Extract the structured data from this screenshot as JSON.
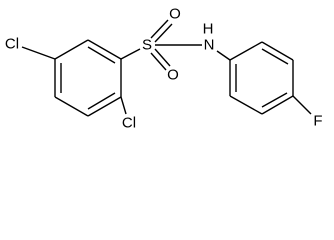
{
  "atoms": [
    {
      "label": "Cl"
    },
    {
      "label": "S"
    },
    {
      "label": "O"
    },
    {
      "label": "O"
    },
    {
      "label": "H"
    },
    {
      "label": "N"
    },
    {
      "label": "Cl"
    },
    {
      "label": "F"
    }
  ]
}
